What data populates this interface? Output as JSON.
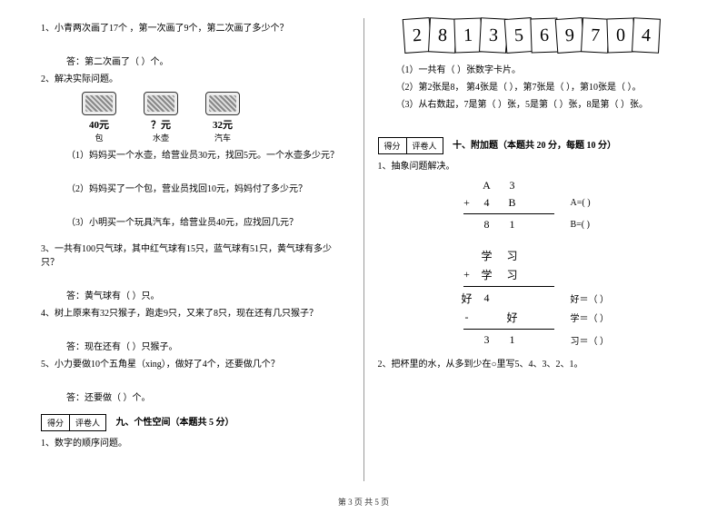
{
  "colors": {
    "text": "#000000",
    "bg": "#ffffff",
    "border": "#000000"
  },
  "left": {
    "q1": "1、小青两次画了17个 ，第一次画了9个，第二次画了多少个？",
    "q1a": "答：第二次画了（   ）个。",
    "q2": "2、解决实际问题。",
    "products": [
      {
        "price": "40元",
        "name": "包"
      },
      {
        "price": "？元",
        "name": "水壶"
      },
      {
        "price": "32元",
        "name": "汽车"
      }
    ],
    "q2_1": "（1）妈妈买一个水壶，给营业员30元，找回5元。一个水壶多少元？",
    "q2_2": "（2）妈妈买了一个包，营业员找回10元，妈妈付了多少元？",
    "q2_3": "（3）小明买一个玩具汽车，给营业员40元，应找回几元？",
    "q3": "3、一共有100只气球，其中红气球有15只，蓝气球有51只，黄气球有多少只？",
    "q3a": "答：黄气球有（   ）只。",
    "q4": "4、树上原来有32只猴子，跑走9只，又来了8只，现在还有几只猴子？",
    "q4a": "答：现在还有（   ）只猴子。",
    "q5": "5、小力要做10个五角星（xing），做好了4个，还要做几个？",
    "q5a": "答：还要做（   ）个。",
    "score_label1": "得分",
    "score_label2": "评卷人",
    "section9": "九、个性空间（本题共 5 分）",
    "q9_1": "1、数字的顺序问题。"
  },
  "right": {
    "cards": [
      "2",
      "8",
      "1",
      "3",
      "5",
      "6",
      "9",
      "7",
      "0",
      "4"
    ],
    "c1": "（1）一共有（        ）张数字卡片。",
    "c2": "（2）第2张是8，  第4张是（         ），第7张是（          ），第10张是（          ）。",
    "c3": "（3）从右数起，7是第（          ）张，5是第（          ）张，8是第（          ）张。",
    "score_label1": "得分",
    "score_label2": "评卷人",
    "section10": "十、附加题（本题共 20 分，每题 10 分）",
    "p1": "1、抽象问题解决。",
    "m1": {
      "r1": [
        "",
        "A",
        "3"
      ],
      "r2": [
        "+",
        "4",
        "B"
      ],
      "r3": [
        "",
        "8",
        "1"
      ],
      "resA": "A=(            )",
      "resB": "B=(            )"
    },
    "m2": {
      "r1": [
        "",
        "学",
        "习"
      ],
      "r2": [
        "+",
        "学",
        "习"
      ],
      "r3": [
        "好",
        "4",
        ""
      ],
      "r4": [
        "-",
        "",
        "好"
      ],
      "r5": [
        "",
        "3",
        "1"
      ],
      "resH": "好＝（           ）",
      "resX": "学＝（           ）",
      "resXi": "习＝（           ）"
    },
    "p2": "2、把杯里的水，从多到少在○里写5、4、3、2、1。"
  },
  "footer": "第 3 页 共 5 页"
}
